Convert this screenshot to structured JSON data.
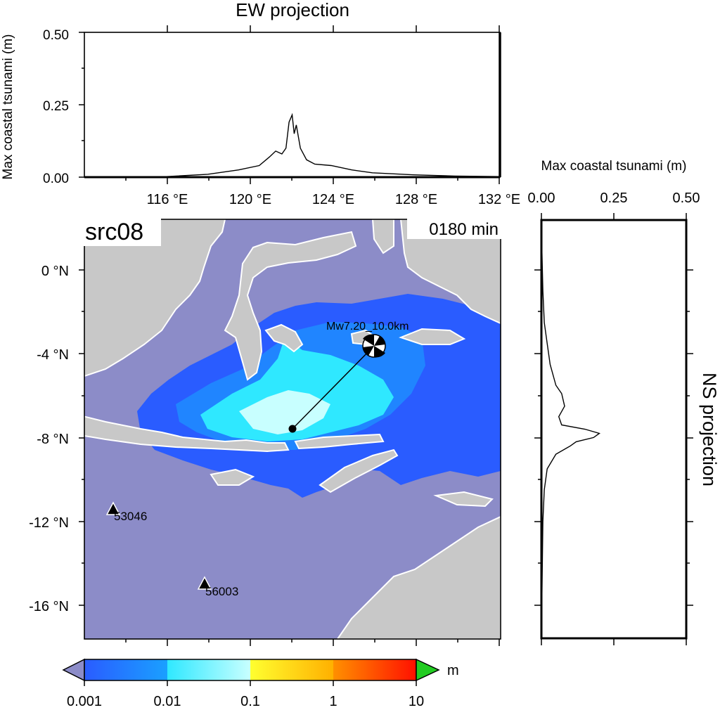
{
  "ew_panel": {
    "title": "EW projection",
    "ylabel": "Max coastal tsunami (m)",
    "yticks": [
      "0.00",
      "0.25",
      "0.50"
    ],
    "xticks": [
      "116 °E",
      "120 °E",
      "124 °E",
      "128 °E",
      "132 °E"
    ]
  },
  "ns_panel": {
    "title": "NS projection",
    "xlabel": "Max coastal tsunami (m)",
    "xticks": [
      "0.00",
      "0.25",
      "0.50"
    ]
  },
  "map": {
    "source_label": "src08",
    "time_label": "0180 min",
    "yticks": [
      "0 °N",
      "-4 °N",
      "-8 °N",
      "-12 °N",
      "-16 °N"
    ],
    "event_label": "Mw7.20_10.0km",
    "stations": [
      {
        "id": "53046",
        "lon": 113.4,
        "lat": -11.4
      },
      {
        "id": "56003",
        "lon": 117.9,
        "lat": -15.0
      }
    ],
    "epicenter": {
      "lon": 122.0,
      "lat": -7.6
    },
    "beachball": {
      "lon": 126.0,
      "lat": -3.6
    },
    "colors": {
      "ocean": "#8c8cc8",
      "land": "#c8c8c8",
      "coast": "#ffffff"
    }
  },
  "colorbar": {
    "unit": "m",
    "ticks": [
      "0.001",
      "0.01",
      "0.1",
      "1",
      "10"
    ],
    "colors": [
      "#2a5cff",
      "#2fe8ff",
      "#ffff30",
      "#ff3000",
      "#22cc22",
      "#8c8cc8"
    ]
  },
  "chart_data": [
    {
      "type": "line",
      "title": "EW projection",
      "xlabel": "",
      "ylabel": "Max coastal tsunami (m)",
      "xlim": [
        112.0,
        132.2
      ],
      "ylim": [
        0,
        0.5
      ],
      "x": [
        112,
        116,
        118,
        119.5,
        120.5,
        121.0,
        121.3,
        121.6,
        121.8,
        121.95,
        122.1,
        122.2,
        122.3,
        122.5,
        122.8,
        123.2,
        124,
        125,
        126,
        128,
        130,
        132.2
      ],
      "y": [
        0.0,
        0.002,
        0.01,
        0.025,
        0.04,
        0.07,
        0.09,
        0.08,
        0.1,
        0.19,
        0.215,
        0.15,
        0.18,
        0.1,
        0.06,
        0.045,
        0.04,
        0.025,
        0.015,
        0.008,
        0.004,
        0.002
      ]
    },
    {
      "type": "line",
      "title": "NS projection",
      "xlabel": "Max coastal tsunami (m)",
      "ylabel": "",
      "xlim": [
        0,
        0.5
      ],
      "ylim": [
        -17.6,
        2.4
      ],
      "x": [
        0.0,
        0.005,
        0.01,
        0.02,
        0.03,
        0.05,
        0.07,
        0.08,
        0.06,
        0.07,
        0.15,
        0.2,
        0.18,
        0.12,
        0.1,
        0.05,
        0.02,
        0.01,
        0.005,
        0.0
      ],
      "y": [
        2.0,
        -1.0,
        -2.5,
        -3.5,
        -4.5,
        -5.5,
        -5.9,
        -6.5,
        -7.0,
        -7.4,
        -7.6,
        -7.8,
        -8.0,
        -8.2,
        -8.4,
        -8.8,
        -9.5,
        -10.5,
        -12.0,
        -17.6
      ]
    }
  ]
}
